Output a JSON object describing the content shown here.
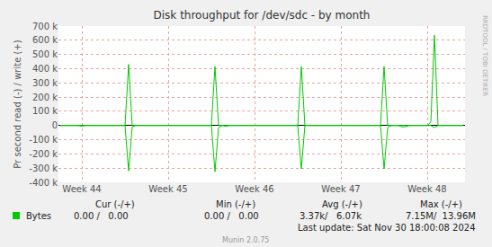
{
  "chart_data": {
    "type": "line",
    "title": "Disk throughput for /dev/sdc - by month",
    "y_label": "Pr second read (-) / write (+)",
    "categories": [
      null,
      null,
      null,
      null,
      null,
      null,
      "Week 44",
      null,
      null,
      null,
      null,
      null,
      null,
      null,
      null,
      null,
      null,
      null,
      null,
      null,
      null,
      null,
      null,
      null,
      null,
      null,
      null,
      null,
      null,
      null,
      "Week 45",
      null,
      null,
      null,
      null,
      null,
      null,
      null,
      null,
      null,
      null,
      null,
      null,
      null,
      null,
      null,
      null,
      null,
      null,
      null,
      null,
      null,
      null,
      null,
      "Week 46",
      null,
      null,
      null,
      null,
      null,
      null,
      null,
      null,
      null,
      null,
      null,
      null,
      null,
      null,
      null,
      null,
      null,
      null,
      null,
      null,
      null,
      null,
      null,
      "Week 47",
      null,
      null,
      null,
      null,
      null,
      null,
      null,
      null,
      null,
      null,
      null,
      null,
      null,
      null,
      null,
      null,
      null,
      null,
      null,
      null,
      null,
      null,
      null,
      "Week 48",
      null,
      null,
      null,
      null,
      null,
      null,
      null,
      null,
      null,
      null
    ],
    "series": [
      {
        "name": "Bytes",
        "color": "#00cc00",
        "values": [
          0,
          0,
          0,
          0,
          0,
          0,
          0,
          0,
          0,
          0,
          0,
          0,
          0,
          0,
          0,
          0,
          0,
          0,
          0,
          430000,
          0,
          0,
          0,
          0,
          0,
          0,
          0,
          0,
          0,
          0,
          0,
          0,
          0,
          0,
          0,
          0,
          0,
          0,
          0,
          0,
          0,
          0,
          0,
          415000,
          0,
          0,
          0,
          0,
          0,
          0,
          0,
          0,
          0,
          0,
          0,
          0,
          0,
          0,
          0,
          0,
          0,
          0,
          0,
          0,
          0,
          0,
          0,
          415000,
          0,
          0,
          0,
          0,
          0,
          0,
          0,
          0,
          0,
          0,
          0,
          0,
          0,
          0,
          0,
          0,
          0,
          0,
          0,
          0,
          0,
          0,
          415000,
          0,
          0,
          0,
          0,
          0,
          0,
          0,
          0,
          0,
          0,
          0,
          0,
          25000,
          635000,
          0,
          0,
          0,
          0,
          0,
          0,
          0,
          0
        ],
        "read_values": [
          0,
          0,
          0,
          0,
          0,
          0,
          -5000,
          0,
          0,
          0,
          0,
          0,
          0,
          0,
          0,
          0,
          0,
          0,
          0,
          -320000,
          -8000,
          0,
          0,
          0,
          0,
          0,
          0,
          0,
          0,
          0,
          0,
          0,
          0,
          0,
          0,
          0,
          0,
          0,
          0,
          0,
          0,
          0,
          0,
          -325000,
          -15000,
          0,
          -5000,
          0,
          0,
          0,
          0,
          0,
          0,
          0,
          0,
          0,
          0,
          0,
          0,
          0,
          0,
          0,
          0,
          0,
          0,
          0,
          0,
          -305000,
          0,
          0,
          0,
          0,
          0,
          0,
          0,
          0,
          0,
          0,
          0,
          0,
          0,
          0,
          0,
          0,
          0,
          0,
          0,
          0,
          0,
          0,
          -305000,
          -15000,
          0,
          0,
          0,
          -10000,
          -8000,
          0,
          0,
          0,
          0,
          0,
          0,
          0,
          -15000,
          0,
          0,
          0,
          0,
          0,
          0,
          0,
          0
        ],
        "stats": [
          "0.00 /   0.00",
          "0.00 /   0.00",
          "3.37k/   6.07k",
          "7.15M/  13.96M"
        ]
      }
    ],
    "stat_headers": [
      "Cur (-/+)",
      "Min (-/+)",
      "Avg (-/+)",
      "Max (-/+)"
    ],
    "ylim": [
      -400000,
      700000
    ],
    "yticks": [
      {
        "value": -400000,
        "label": "-400 k"
      },
      {
        "value": -300000,
        "label": "-300 k"
      },
      {
        "value": -200000,
        "label": "-200 k"
      },
      {
        "value": -100000,
        "label": "-100 k"
      },
      0,
      {
        "value": 100000,
        "label": "100 k"
      },
      {
        "value": 200000,
        "label": "200 k"
      },
      {
        "value": 300000,
        "label": "300 k"
      },
      {
        "value": 400000,
        "label": "400 k"
      },
      {
        "value": 500000,
        "label": "500 k"
      },
      {
        "value": 600000,
        "label": "600 k"
      },
      {
        "value": 700000,
        "label": "700 k"
      }
    ],
    "grid": true,
    "last_update": "Last update: Sat Nov 30 18:00:08 2024",
    "footer": "Munin 2.0.75",
    "watermark": "RRDTOOL / TOBI OETIKER"
  }
}
